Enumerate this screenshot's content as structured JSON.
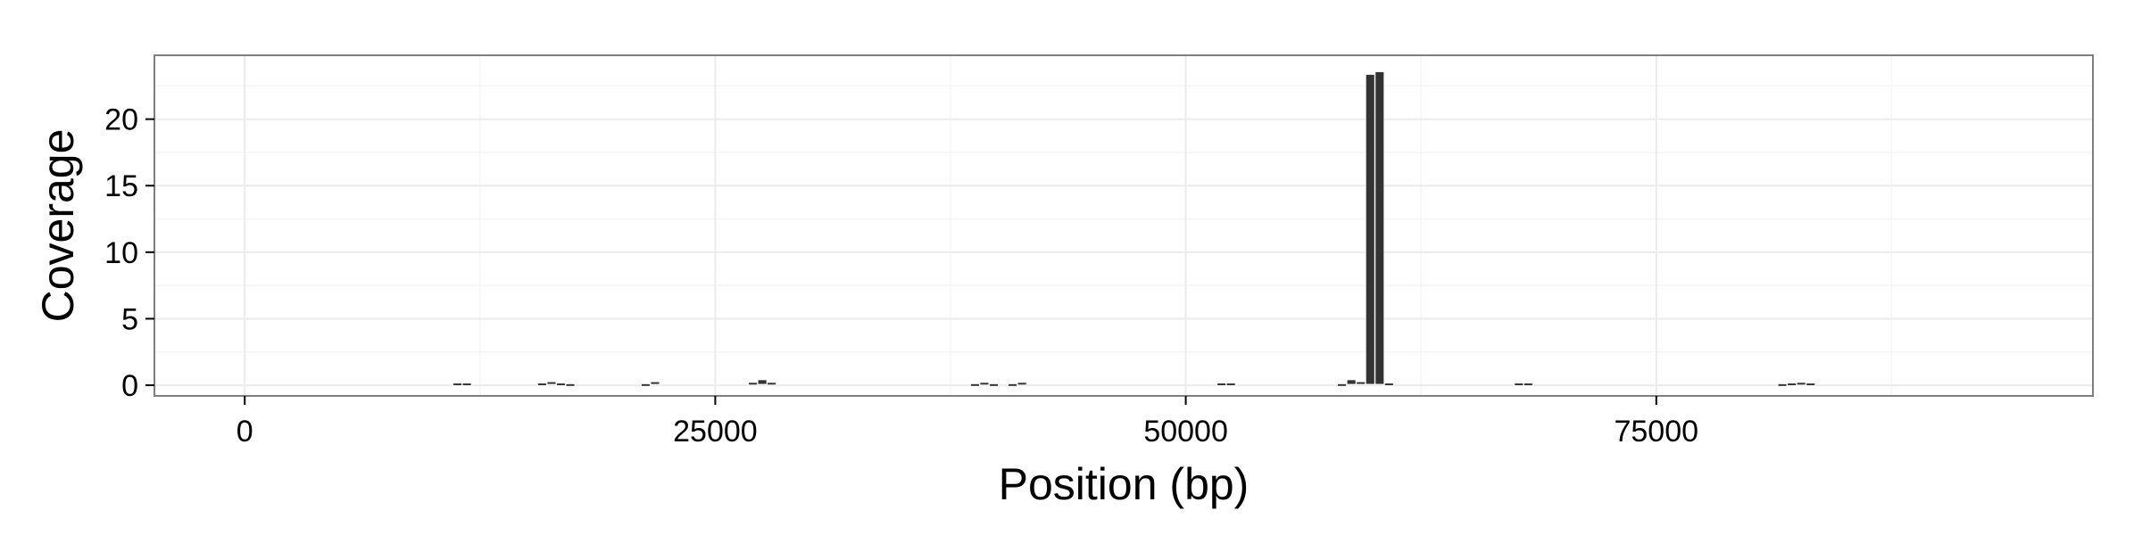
{
  "chart_data": {
    "type": "bar",
    "title": "",
    "xlabel": "Position (bp)",
    "ylabel": "Coverage",
    "xlim": [
      -4800,
      98200
    ],
    "ylim": [
      -0.8,
      24.8
    ],
    "x_ticks": [
      0,
      25000,
      50000,
      75000
    ],
    "x_tick_labels": [
      "0",
      "25000",
      "50000",
      "75000"
    ],
    "y_ticks": [
      0,
      5,
      10,
      15,
      20
    ],
    "y_tick_labels": [
      "0",
      "5",
      "10",
      "15",
      "20"
    ],
    "grid": true,
    "legend": "none",
    "bar_width": 480,
    "x": [
      11300,
      11800,
      15800,
      16300,
      16800,
      17300,
      21300,
      21800,
      27000,
      27500,
      28000,
      38800,
      39300,
      39800,
      40800,
      41300,
      51900,
      52400,
      58300,
      58800,
      59300,
      59800,
      60300,
      60800,
      67700,
      68200,
      81700,
      82200,
      82700,
      83200
    ],
    "values": [
      0.1,
      0.1,
      0.1,
      0.2,
      0.1,
      0.05,
      0.05,
      0.2,
      0.15,
      0.35,
      0.15,
      0.05,
      0.15,
      0.05,
      0.05,
      0.15,
      0.1,
      0.1,
      0.05,
      0.35,
      0.2,
      23.3,
      23.5,
      0.1,
      0.1,
      0.1,
      0.05,
      0.1,
      0.15,
      0.1
    ],
    "colors": {
      "bar_fill": "#333333",
      "bar_edge": "#ffffff",
      "panel_border": "#7f7f7f",
      "grid_major": "#ebebeb",
      "grid_minor": "#f5f5f5"
    }
  }
}
